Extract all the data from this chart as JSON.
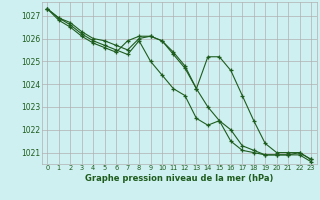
{
  "bg_color": "#cff0f0",
  "grid_color": "#b0b0b0",
  "line_color": "#1e5c1e",
  "xlabel": "Graphe pression niveau de la mer (hPa)",
  "xlim": [
    -0.5,
    23.5
  ],
  "ylim": [
    1020.5,
    1027.6
  ],
  "yticks": [
    1021,
    1022,
    1023,
    1024,
    1025,
    1026,
    1027
  ],
  "xticks": [
    0,
    1,
    2,
    3,
    4,
    5,
    6,
    7,
    8,
    9,
    10,
    11,
    12,
    13,
    14,
    15,
    16,
    17,
    18,
    19,
    20,
    21,
    22,
    23
  ],
  "series": [
    [
      1027.3,
      1026.9,
      1026.7,
      1026.3,
      1026.0,
      1025.9,
      1025.7,
      1025.5,
      1026.0,
      1026.1,
      1025.9,
      1025.3,
      1024.7,
      1023.8,
      1025.2,
      1025.2,
      1024.6,
      1023.5,
      1022.4,
      1021.4,
      1021.0,
      1021.0,
      1021.0,
      1020.7
    ],
    [
      1027.3,
      1026.9,
      1026.6,
      1026.2,
      1025.9,
      1025.7,
      1025.5,
      1025.3,
      1025.9,
      1025.0,
      1024.4,
      1023.8,
      1023.5,
      1022.5,
      1022.2,
      1022.4,
      1022.0,
      1021.3,
      1021.1,
      1020.9,
      1020.9,
      1020.9,
      1021.0,
      1020.7
    ],
    [
      1027.3,
      1026.8,
      1026.5,
      1026.1,
      1025.8,
      1025.6,
      1025.4,
      1025.9,
      1026.1,
      1026.1,
      1025.9,
      1025.4,
      1024.8,
      1023.8,
      1023.0,
      1022.4,
      1021.5,
      1021.1,
      1021.0,
      1020.9,
      1020.9,
      1020.9,
      1020.9,
      1020.6
    ]
  ]
}
